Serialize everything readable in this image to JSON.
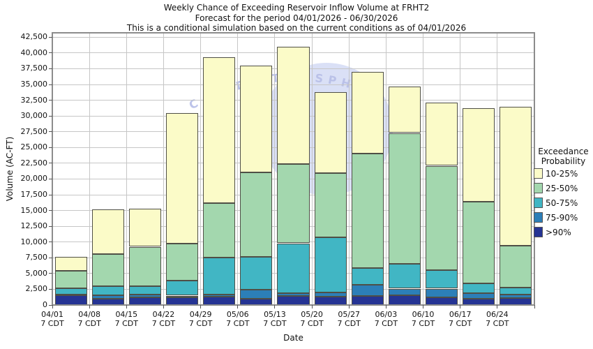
{
  "title": {
    "line1": "Weekly Chance of Exceeding Reservoir Inflow Volume at FRHT2",
    "line2": "Forecast for the period 04/01/2026 - 06/30/2026",
    "line3": "This is a conditional simulation based on the current conditions as of 04/01/2026"
  },
  "y_axis": {
    "label": "Volume (AC-FT)",
    "tick_values": [
      0,
      2500,
      5000,
      7500,
      10000,
      12500,
      15000,
      17500,
      20000,
      22500,
      25000,
      27500,
      30000,
      32500,
      35000,
      37500,
      40000,
      42500
    ]
  },
  "x_axis": {
    "label": "Date",
    "tick_line2": "7 CDT"
  },
  "legend": {
    "title_line1": "Exceedance",
    "title_line2": "Probability",
    "entries": [
      {
        "label": "10-25%",
        "color": "#fbfbc8"
      },
      {
        "label": "25-50%",
        "color": "#a3d7ae"
      },
      {
        "label": "50-75%",
        "color": "#41b6c4"
      },
      {
        "label": "75-90%",
        "color": "#2c7fb8"
      },
      {
        "label": ">90%",
        "color": "#253494"
      }
    ]
  },
  "watermark": {
    "text": "C AND ATMOSPHE",
    "text_color": "#b9c0e8",
    "circle_color": "#d4daf5"
  },
  "chart_data": {
    "type": "bar",
    "stacked": true,
    "title": "Weekly Chance of Exceeding Reservoir Inflow Volume at FRHT2",
    "xlabel": "Date",
    "ylabel": "Volume (AC-FT)",
    "ylim": [
      0,
      43200
    ],
    "grid": true,
    "legend_position": "right",
    "categories": [
      "04/01",
      "04/08",
      "04/15",
      "04/22",
      "04/29",
      "05/06",
      "05/13",
      "05/20",
      "05/27",
      "06/03",
      "06/10",
      "06/17",
      "06/24"
    ],
    "values_are": "cumulative exceedance volume tops (AC-FT), stacked bottom-to-top",
    "series": [
      {
        "name": ">90%",
        "color": "#253494",
        "cumulative_top": [
          1600,
          1050,
          1200,
          1250,
          1350,
          1000,
          1400,
          1300,
          1400,
          1600,
          1200,
          1000,
          1100
        ]
      },
      {
        "name": "75-90%",
        "color": "#2c7fb8",
        "cumulative_top": [
          1700,
          1600,
          1700,
          1500,
          1700,
          2400,
          1900,
          2000,
          3200,
          2600,
          2600,
          1900,
          1700
        ]
      },
      {
        "name": "50-75%",
        "color": "#41b6c4",
        "cumulative_top": [
          2700,
          2950,
          3050,
          3900,
          7500,
          7600,
          9800,
          10750,
          5900,
          6500,
          5500,
          3400,
          2800
        ]
      },
      {
        "name": "25-50%",
        "color": "#a3d7ae",
        "cumulative_top": [
          5400,
          8100,
          9250,
          9800,
          16200,
          21000,
          22400,
          20900,
          24000,
          27300,
          22100,
          16400,
          9450
        ]
      },
      {
        "name": "10-25%",
        "color": "#fbfbc8",
        "cumulative_top": [
          7700,
          15200,
          15250,
          30500,
          39300,
          38000,
          41000,
          33800,
          37000,
          34700,
          32100,
          31200,
          31500
        ]
      }
    ]
  }
}
